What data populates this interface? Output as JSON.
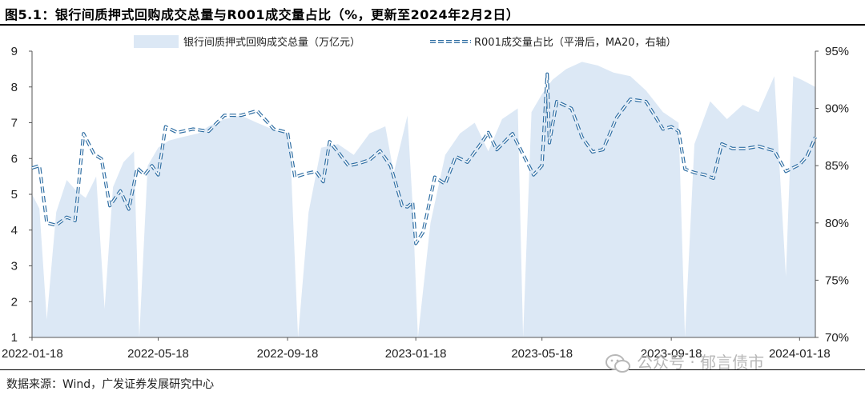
{
  "title": "图5.1：银行间质押式回购成交总量与R001成交量占比（%，更新至2024年2月2日）",
  "source": "数据来源：Wind，广发证券发展研究中心",
  "watermark": "公众号 · 郁言债市",
  "colors": {
    "area": "#dce8f5",
    "line": "#2f6ea3",
    "text": "#222222"
  },
  "chart_data": {
    "type": "area",
    "legend": [
      {
        "label": "银行间质押式回购成交总量（万亿元）",
        "kind": "area"
      },
      {
        "label": "R001成交量占比（平滑后，MA20，右轴）",
        "kind": "dashed-line"
      }
    ],
    "x_tick_labels": [
      "2022-01-18",
      "2022-05-18",
      "2022-09-18",
      "2023-01-18",
      "2023-05-18",
      "2023-09-18",
      "2024-01-18"
    ],
    "x_range": [
      "2022-01-18",
      "2024-02-02"
    ],
    "left_axis": {
      "min": 1,
      "max": 9,
      "ticks": [
        "1",
        "2",
        "3",
        "4",
        "5",
        "6",
        "7",
        "8",
        "9"
      ]
    },
    "right_axis": {
      "min": 70,
      "max": 95,
      "ticks": [
        "70%",
        "75%",
        "80%",
        "85%",
        "90%",
        "95%"
      ]
    },
    "series": [
      {
        "name": "银行间质押式回购成交总量（万亿元）",
        "axis": "left",
        "points": [
          [
            "2022-01-18",
            5.0
          ],
          [
            "2022-01-25",
            4.6
          ],
          [
            "2022-02-01",
            1.5
          ],
          [
            "2022-02-10",
            4.5
          ],
          [
            "2022-02-20",
            5.4
          ],
          [
            "2022-03-01",
            5.1
          ],
          [
            "2022-03-10",
            4.9
          ],
          [
            "2022-03-20",
            5.5
          ],
          [
            "2022-03-28",
            1.8
          ],
          [
            "2022-04-05",
            5.2
          ],
          [
            "2022-04-15",
            5.9
          ],
          [
            "2022-04-25",
            6.2
          ],
          [
            "2022-04-30",
            1.0
          ],
          [
            "2022-05-08",
            5.8
          ],
          [
            "2022-05-18",
            6.3
          ],
          [
            "2022-05-28",
            6.5
          ],
          [
            "2022-06-10",
            6.6
          ],
          [
            "2022-06-25",
            6.7
          ],
          [
            "2022-07-05",
            6.9
          ],
          [
            "2022-07-20",
            7.1
          ],
          [
            "2022-08-05",
            7.2
          ],
          [
            "2022-08-20",
            7.0
          ],
          [
            "2022-09-05",
            6.8
          ],
          [
            "2022-09-20",
            6.7
          ],
          [
            "2022-09-28",
            1.0
          ],
          [
            "2022-10-08",
            4.5
          ],
          [
            "2022-10-20",
            6.3
          ],
          [
            "2022-11-05",
            6.4
          ],
          [
            "2022-11-20",
            6.1
          ],
          [
            "2022-12-05",
            6.7
          ],
          [
            "2022-12-20",
            6.9
          ],
          [
            "2022-12-28",
            5.6
          ],
          [
            "2023-01-10",
            7.2
          ],
          [
            "2023-01-15",
            4.7
          ],
          [
            "2023-01-20",
            1.0
          ],
          [
            "2023-02-01",
            4.2
          ],
          [
            "2023-02-15",
            6.1
          ],
          [
            "2023-03-01",
            6.7
          ],
          [
            "2023-03-15",
            7.0
          ],
          [
            "2023-03-28",
            6.2
          ],
          [
            "2023-04-10",
            7.1
          ],
          [
            "2023-04-25",
            7.4
          ],
          [
            "2023-04-30",
            1.0
          ],
          [
            "2023-05-08",
            7.3
          ],
          [
            "2023-05-18",
            7.8
          ],
          [
            "2023-05-28",
            8.2
          ],
          [
            "2023-06-10",
            8.5
          ],
          [
            "2023-06-25",
            8.7
          ],
          [
            "2023-07-10",
            8.6
          ],
          [
            "2023-07-25",
            8.4
          ],
          [
            "2023-08-10",
            8.3
          ],
          [
            "2023-08-25",
            7.9
          ],
          [
            "2023-09-10",
            7.3
          ],
          [
            "2023-09-25",
            7.0
          ],
          [
            "2023-10-01",
            1.0
          ],
          [
            "2023-10-10",
            6.4
          ],
          [
            "2023-10-25",
            7.6
          ],
          [
            "2023-11-10",
            7.1
          ],
          [
            "2023-11-25",
            7.5
          ],
          [
            "2023-12-10",
            7.3
          ],
          [
            "2023-12-25",
            8.3
          ],
          [
            "2024-01-05",
            2.7
          ],
          [
            "2024-01-12",
            8.3
          ],
          [
            "2024-01-20",
            8.2
          ],
          [
            "2024-02-02",
            8.0
          ]
        ]
      },
      {
        "name": "R001成交量占比（平滑后，MA20，右轴）",
        "axis": "right",
        "points": [
          [
            "2022-01-18",
            84.8
          ],
          [
            "2022-01-25",
            85.0
          ],
          [
            "2022-02-01",
            80.0
          ],
          [
            "2022-02-10",
            79.8
          ],
          [
            "2022-02-20",
            80.5
          ],
          [
            "2022-02-28",
            80.2
          ],
          [
            "2022-03-08",
            87.8
          ],
          [
            "2022-03-18",
            86.0
          ],
          [
            "2022-03-25",
            85.6
          ],
          [
            "2022-04-02",
            81.5
          ],
          [
            "2022-04-12",
            82.8
          ],
          [
            "2022-04-20",
            81.2
          ],
          [
            "2022-04-28",
            84.8
          ],
          [
            "2022-05-05",
            84.2
          ],
          [
            "2022-05-12",
            85.0
          ],
          [
            "2022-05-18",
            84.2
          ],
          [
            "2022-05-25",
            88.4
          ],
          [
            "2022-06-05",
            87.9
          ],
          [
            "2022-06-20",
            88.2
          ],
          [
            "2022-07-05",
            88.0
          ],
          [
            "2022-07-20",
            89.4
          ],
          [
            "2022-08-05",
            89.4
          ],
          [
            "2022-08-20",
            89.8
          ],
          [
            "2022-09-05",
            88.2
          ],
          [
            "2022-09-18",
            87.9
          ],
          [
            "2022-09-25",
            84.0
          ],
          [
            "2022-10-05",
            84.3
          ],
          [
            "2022-10-15",
            84.5
          ],
          [
            "2022-10-22",
            83.6
          ],
          [
            "2022-10-28",
            87.1
          ],
          [
            "2022-11-05",
            86.2
          ],
          [
            "2022-11-15",
            85.0
          ],
          [
            "2022-11-25",
            85.2
          ],
          [
            "2022-12-05",
            85.5
          ],
          [
            "2022-12-15",
            86.3
          ],
          [
            "2022-12-25",
            85.0
          ],
          [
            "2023-01-05",
            81.5
          ],
          [
            "2023-01-10",
            81.4
          ],
          [
            "2023-01-15",
            81.8
          ],
          [
            "2023-01-18",
            78.2
          ],
          [
            "2023-01-25",
            79.2
          ],
          [
            "2023-02-05",
            84.0
          ],
          [
            "2023-02-15",
            83.4
          ],
          [
            "2023-02-25",
            85.8
          ],
          [
            "2023-03-08",
            85.3
          ],
          [
            "2023-03-20",
            86.8
          ],
          [
            "2023-03-28",
            87.9
          ],
          [
            "2023-04-05",
            86.4
          ],
          [
            "2023-04-20",
            87.8
          ],
          [
            "2023-05-01",
            85.8
          ],
          [
            "2023-05-10",
            84.2
          ],
          [
            "2023-05-18",
            85.0
          ],
          [
            "2023-05-23",
            93.0
          ],
          [
            "2023-05-25",
            87.0
          ],
          [
            "2023-06-01",
            90.6
          ],
          [
            "2023-06-15",
            90.0
          ],
          [
            "2023-06-25",
            87.5
          ],
          [
            "2023-07-05",
            86.2
          ],
          [
            "2023-07-15",
            86.4
          ],
          [
            "2023-07-28",
            89.2
          ],
          [
            "2023-08-10",
            90.8
          ],
          [
            "2023-08-25",
            90.6
          ],
          [
            "2023-09-10",
            88.2
          ],
          [
            "2023-09-18",
            88.4
          ],
          [
            "2023-09-25",
            88.0
          ],
          [
            "2023-10-01",
            84.7
          ],
          [
            "2023-10-10",
            84.4
          ],
          [
            "2023-10-20",
            84.2
          ],
          [
            "2023-10-28",
            83.9
          ],
          [
            "2023-11-05",
            86.9
          ],
          [
            "2023-11-15",
            86.5
          ],
          [
            "2023-11-28",
            86.5
          ],
          [
            "2023-12-10",
            86.7
          ],
          [
            "2023-12-25",
            86.3
          ],
          [
            "2024-01-05",
            84.5
          ],
          [
            "2024-01-18",
            85.1
          ],
          [
            "2024-01-25",
            85.8
          ],
          [
            "2024-02-02",
            87.5
          ]
        ]
      }
    ]
  }
}
